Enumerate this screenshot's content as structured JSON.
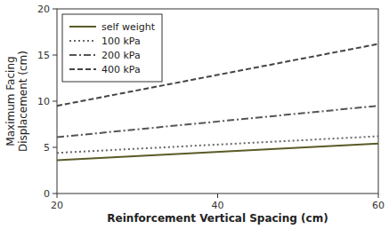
{
  "chart_data": {
    "type": "line",
    "x": [
      20,
      60
    ],
    "series": [
      {
        "name": "self weight",
        "color": "#5a5a28",
        "line_style": "solid",
        "values": [
          3.6,
          5.4
        ]
      },
      {
        "name": "100 kPa",
        "color": "#666666",
        "line_style": "dotted",
        "values": [
          4.4,
          6.2
        ]
      },
      {
        "name": "200 kPa",
        "color": "#555555",
        "line_style": "dashdot",
        "values": [
          6.1,
          9.5
        ]
      },
      {
        "name": "400 kPa",
        "color": "#444444",
        "line_style": "dashed",
        "values": [
          9.5,
          16.2
        ]
      }
    ],
    "xlabel": "Reinforcement Vertical Spacing (cm)",
    "ylabel": "Maximum Facing\nDisplacement (cm)",
    "xlim": [
      20,
      60
    ],
    "ylim": [
      0,
      20
    ],
    "xticks": [
      20,
      40,
      60
    ],
    "yticks": [
      0,
      5,
      10,
      15,
      20
    ],
    "legend": "upper left"
  }
}
